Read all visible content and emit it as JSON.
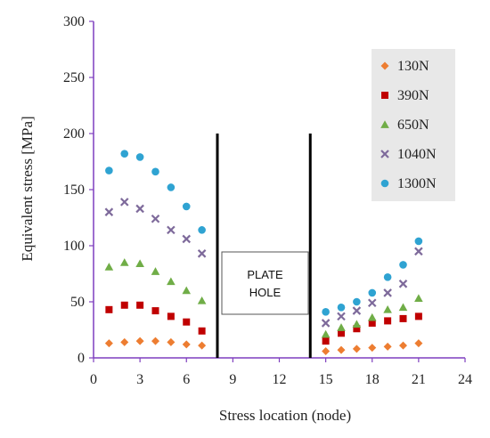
{
  "chart_data": {
    "type": "scatter",
    "xlabel": "Stress location (node)",
    "ylabel": "Equivalent stress [MPa]",
    "xlim": [
      0,
      24
    ],
    "ylim": [
      0,
      300
    ],
    "x_ticks": [
      0,
      3,
      6,
      9,
      12,
      15,
      18,
      21,
      24
    ],
    "y_ticks": [
      0,
      50,
      100,
      150,
      200,
      250,
      300
    ],
    "grid": false,
    "legend_position": "top-right",
    "hole_label_line1": "PLATE",
    "hole_label_line2": "HOLE",
    "hole_lines_x": [
      8,
      14
    ],
    "hole_lines_top": 200,
    "series": [
      {
        "name": "130N",
        "color": "#ED7D31",
        "marker": "diamond",
        "points": [
          [
            1,
            13
          ],
          [
            2,
            14
          ],
          [
            3,
            15
          ],
          [
            4,
            15
          ],
          [
            5,
            14
          ],
          [
            6,
            12
          ],
          [
            7,
            11
          ],
          [
            15,
            6
          ],
          [
            16,
            7
          ],
          [
            17,
            8
          ],
          [
            18,
            9
          ],
          [
            19,
            10
          ],
          [
            20,
            11
          ],
          [
            21,
            13
          ]
        ]
      },
      {
        "name": "390N",
        "color": "#C00000",
        "marker": "square",
        "points": [
          [
            1,
            43
          ],
          [
            2,
            47
          ],
          [
            3,
            47
          ],
          [
            4,
            42
          ],
          [
            5,
            37
          ],
          [
            6,
            32
          ],
          [
            7,
            24
          ],
          [
            15,
            15
          ],
          [
            16,
            22
          ],
          [
            17,
            26
          ],
          [
            18,
            31
          ],
          [
            19,
            33
          ],
          [
            20,
            35
          ],
          [
            21,
            37
          ]
        ]
      },
      {
        "name": "650N",
        "color": "#70AD47",
        "marker": "triangle",
        "points": [
          [
            1,
            81
          ],
          [
            2,
            85
          ],
          [
            3,
            84
          ],
          [
            4,
            77
          ],
          [
            5,
            68
          ],
          [
            6,
            60
          ],
          [
            7,
            51
          ],
          [
            15,
            21
          ],
          [
            16,
            27
          ],
          [
            17,
            30
          ],
          [
            18,
            36
          ],
          [
            19,
            43
          ],
          [
            20,
            45
          ],
          [
            21,
            53
          ]
        ]
      },
      {
        "name": "1040N",
        "color": "#7E6A9B",
        "marker": "x",
        "points": [
          [
            1,
            130
          ],
          [
            2,
            139
          ],
          [
            3,
            133
          ],
          [
            4,
            124
          ],
          [
            5,
            114
          ],
          [
            6,
            106
          ],
          [
            7,
            93
          ],
          [
            15,
            31
          ],
          [
            16,
            37
          ],
          [
            17,
            42
          ],
          [
            18,
            49
          ],
          [
            19,
            58
          ],
          [
            20,
            66
          ],
          [
            21,
            95
          ]
        ]
      },
      {
        "name": "1300N",
        "color": "#2FA3D2",
        "marker": "circle",
        "points": [
          [
            1,
            167
          ],
          [
            2,
            182
          ],
          [
            3,
            179
          ],
          [
            4,
            166
          ],
          [
            5,
            152
          ],
          [
            6,
            135
          ],
          [
            7,
            114
          ],
          [
            15,
            41
          ],
          [
            16,
            45
          ],
          [
            17,
            50
          ],
          [
            18,
            58
          ],
          [
            19,
            72
          ],
          [
            20,
            83
          ],
          [
            21,
            104
          ]
        ]
      }
    ]
  }
}
